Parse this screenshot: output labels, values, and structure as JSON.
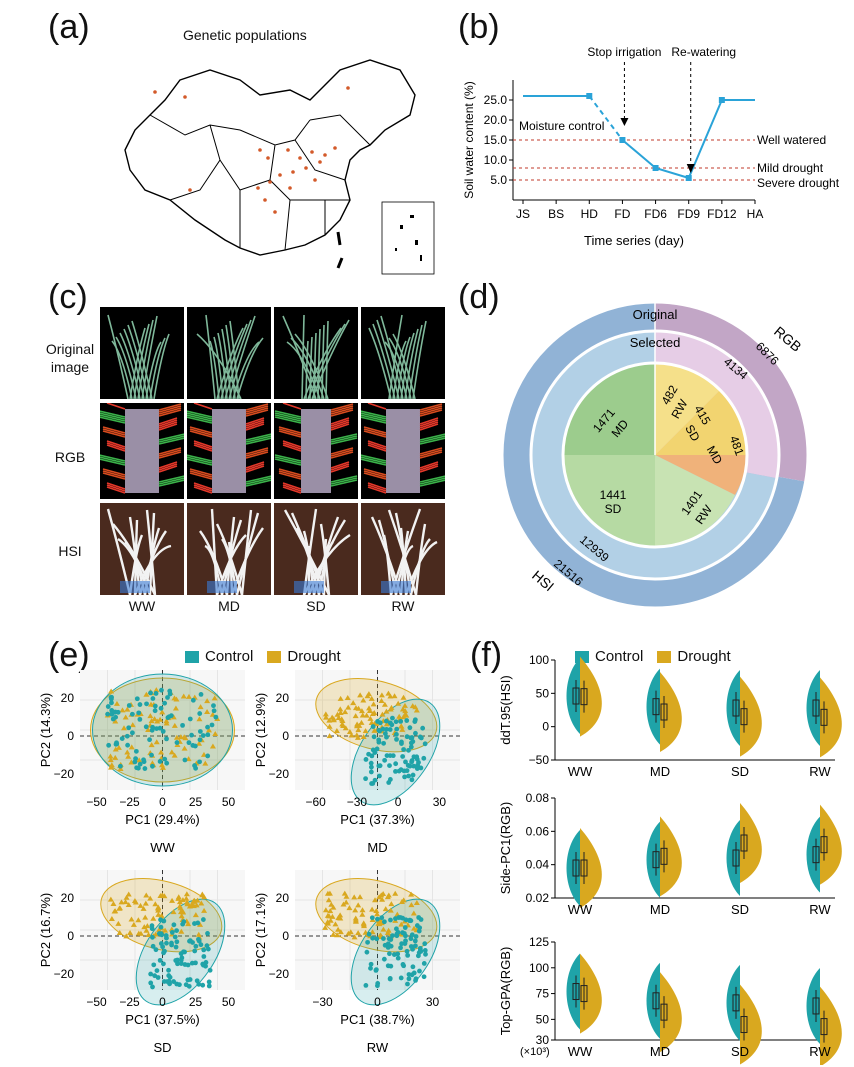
{
  "panels": {
    "a": {
      "label": "(a)",
      "title": "Genetic populations"
    },
    "b": {
      "label": "(b)",
      "annotations": {
        "stop_irrigation": "Stop irrigation",
        "re_watering": "Re-watering",
        "moisture_control": "Moisture control",
        "well_watered": "Well watered",
        "mild_drought": "Mild drought",
        "severe_drought": "Severe drought"
      }
    },
    "c": {
      "label": "(c)",
      "rows": [
        "Original image",
        "RGB",
        "HSI"
      ],
      "columns": [
        "WW",
        "MD",
        "SD",
        "RW"
      ]
    },
    "d": {
      "label": "(d)",
      "ring_labels": {
        "outer": "Original",
        "middle": "Selected"
      },
      "rgb_label": "RGB",
      "hsi_label": "HSI",
      "values": {
        "rgb_original": "6876",
        "rgb_selected": "4134",
        "hsi_original": "21516",
        "hsi_selected": "12939"
      },
      "inner": [
        {
          "value": "482",
          "cond": "RW"
        },
        {
          "value": "415",
          "cond": "SD"
        },
        {
          "value": "481",
          "cond": "MD"
        },
        {
          "value": "1401",
          "cond": "RW"
        },
        {
          "value": "1441",
          "cond": "SD"
        },
        {
          "value": "1471",
          "cond": "MD"
        }
      ]
    },
    "e": {
      "label": "(e)",
      "legend": [
        "Control",
        "Drought"
      ],
      "subplots": [
        {
          "name": "WW",
          "xlabel": "PC1 (29.4%)",
          "ylabel": "PC2 (14.3%)",
          "xticks": [
            "−50",
            "−25",
            "0",
            "25",
            "50"
          ],
          "yticks": [
            "20",
            "0",
            "−20"
          ]
        },
        {
          "name": "MD",
          "xlabel": "PC1 (37.3%)",
          "ylabel": "PC2 (12.9%)",
          "xticks": [
            "−60",
            "−30",
            "0",
            "30"
          ],
          "yticks": [
            "20",
            "0",
            "−20"
          ]
        },
        {
          "name": "SD",
          "xlabel": "PC1 (37.5%)",
          "ylabel": "PC2 (16.7%)",
          "xticks": [
            "−50",
            "−25",
            "0",
            "25",
            "50"
          ],
          "yticks": [
            "20",
            "0",
            "−20"
          ]
        },
        {
          "name": "RW",
          "xlabel": "PC1 (38.7%)",
          "ylabel": "PC2 (17.1%)",
          "xticks": [
            "−30",
            "0",
            "30"
          ],
          "yticks": [
            "20",
            "0",
            "−20"
          ]
        }
      ]
    },
    "f": {
      "label": "(f)",
      "legend": [
        "Control",
        "Drought"
      ],
      "unit_note": "(×10³)"
    }
  },
  "colors": {
    "control": "#1fa3a8",
    "drought": "#d9a81f",
    "line": "#2aa3d8",
    "ref": "#c0392b",
    "ring_outer_hsi": "#91b3d6",
    "ring_mid_hsi": "#b2d0e6",
    "ring_outer_rgb": "#c2a6c6",
    "ring_mid_rgb": "#e6cde6"
  },
  "chart_data": [
    {
      "panel": "b",
      "type": "line",
      "xlabel": "Time series (day)",
      "ylabel": "Soil water content (%)",
      "categories": [
        "JS",
        "BS",
        "HD",
        "FD",
        "FD6",
        "FD9",
        "FD12",
        "HA"
      ],
      "ylim": [
        0,
        30
      ],
      "yticks": [
        "5.0",
        "10.0",
        "15.0",
        "20.0",
        "25.0"
      ],
      "series": [
        {
          "values": [
            26,
            26,
            26,
            15,
            8,
            5.5,
            25,
            25
          ]
        }
      ],
      "reference_lines": [
        15,
        8,
        5
      ]
    },
    {
      "panel": "f",
      "type": "violin",
      "categories": [
        "WW",
        "MD",
        "SD",
        "RW"
      ],
      "subplots": [
        {
          "ylabel": "ddT.95(HSI)",
          "ylim": [
            -50,
            100
          ],
          "yticks": [
            "100",
            "50",
            "0",
            "−50"
          ],
          "control_median": [
            46,
            30,
            28,
            28
          ],
          "drought_median": [
            45,
            22,
            15,
            14
          ]
        },
        {
          "ylabel": "Side-PC1(RGB)",
          "ylim": [
            0.02,
            0.08
          ],
          "yticks": [
            "0.08",
            "0.06",
            "0.04",
            "0.02"
          ],
          "control_median": [
            0.038,
            0.043,
            0.044,
            0.046
          ],
          "drought_median": [
            0.038,
            0.045,
            0.053,
            0.052
          ]
        },
        {
          "ylabel": "Top-GPA(RGB)",
          "ylim": [
            30,
            125
          ],
          "yticks": [
            "125",
            "100",
            "75",
            "50",
            "30"
          ],
          "control_median": [
            77,
            68,
            66,
            63
          ],
          "drought_median": [
            75,
            57,
            45,
            43
          ]
        }
      ]
    }
  ]
}
